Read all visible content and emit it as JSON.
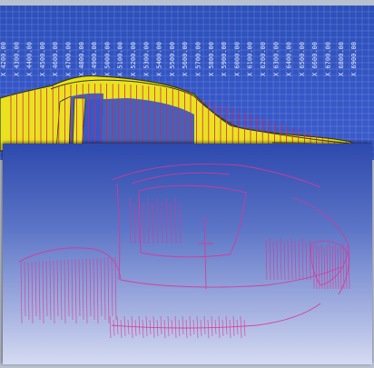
{
  "viewport": {
    "title": "",
    "section_labels": [
      "X 4200.00",
      "X 4300.00",
      "X 4400.00",
      "X 4500.00",
      "X 4600.00",
      "X 4700.00",
      "X 4800.00",
      "X 4900.00",
      "X 5000.00",
      "X 5100.00",
      "X 5200.00",
      "X 5300.00",
      "X 5400.00",
      "X 5500.00",
      "X 5600.00",
      "X 5700.00",
      "X 5800.00",
      "X 5900.00",
      "X 6000.00",
      "X 6100.00",
      "X 6200.00",
      "X 6300.00",
      "X 6400.00",
      "X 6500.00",
      "X 6600.00",
      "X 6700.00",
      "X 6800.00",
      "X 6900.00"
    ]
  },
  "colors": {
    "background_blue": "#3657c6",
    "grid_line": "#8fa6ea",
    "body_fill": "#e9e31f",
    "section_line": "#d9245b",
    "wireframe_line": "#d8389a"
  },
  "icons": {
    "car-side-model": "car body side view, yellow surface with red section cuts",
    "car-wireframe-model": "car rear three-quarter wireframe in magenta"
  }
}
